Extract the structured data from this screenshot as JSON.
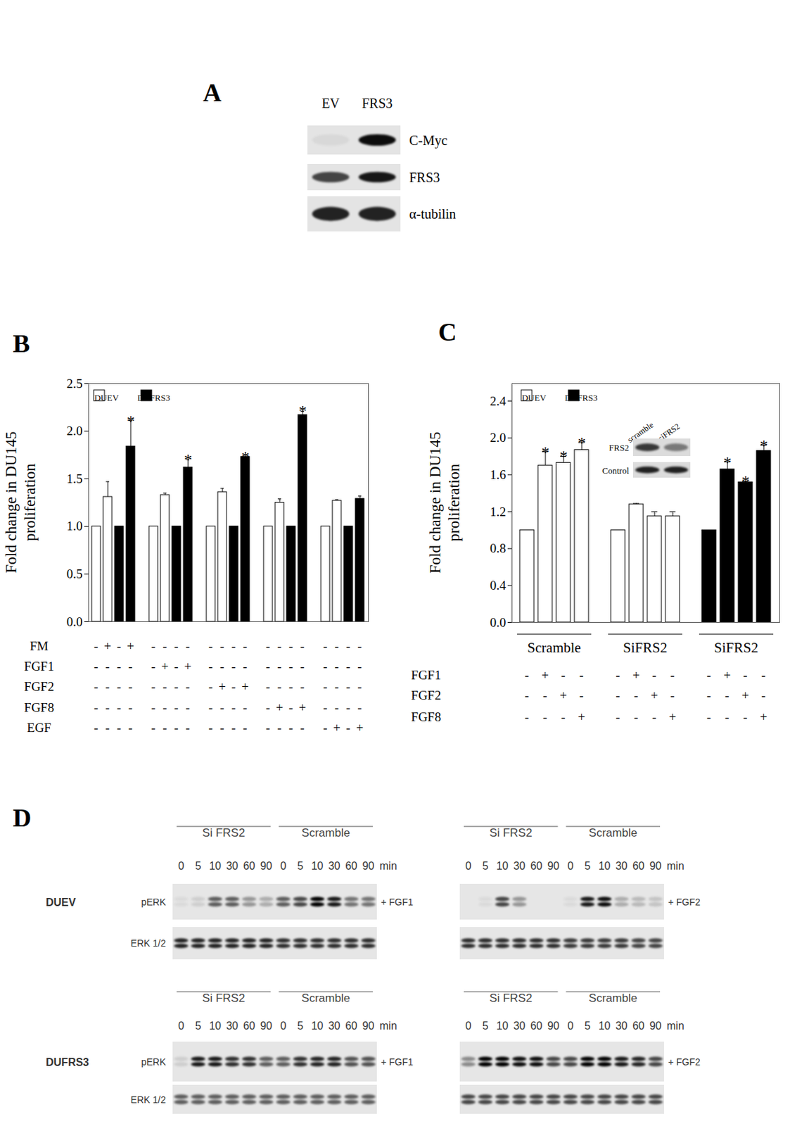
{
  "panel_labels": [
    "A",
    "B",
    "C",
    "D"
  ],
  "panel_a": {
    "lanes": [
      "EV",
      "FRS3"
    ],
    "rows": [
      {
        "label": "C-Myc",
        "bands": [
          0.05,
          0.95
        ]
      },
      {
        "label": "FRS3",
        "bands": [
          0.7,
          0.9
        ]
      },
      {
        "label": "α-tubilin",
        "bands": [
          0.85,
          0.85
        ]
      }
    ]
  },
  "chart_data": [
    {
      "type": "bar",
      "ylabel": [
        "Fold change in DU145",
        "proliferation"
      ],
      "ylim": [
        0,
        2.5
      ],
      "yticks": [
        {
          "value": 0,
          "label": "0.0"
        },
        {
          "value": 0.5,
          "label": "0.5"
        },
        {
          "value": 1,
          "label": "1.0"
        },
        {
          "value": 1.5,
          "label": "1.5"
        },
        {
          "value": 2,
          "label": "2.0"
        },
        {
          "value": 2.5,
          "label": "2.5"
        }
      ],
      "legend": "top-left",
      "series": [
        {
          "name": "DUEV",
          "color": "#ffffff",
          "group": [
            0,
            0,
            1,
            1,
            2,
            2,
            3,
            3,
            4,
            4
          ],
          "values": [
            1,
            1.31,
            1,
            1.33,
            1,
            1.36,
            1,
            1.25,
            1,
            1.27
          ],
          "errors": [
            null,
            0.16,
            null,
            0.02,
            null,
            0.04,
            null,
            0.04,
            null,
            0.01
          ]
        },
        {
          "name": "DUFRS3",
          "color": "#000000",
          "group": [
            0,
            0,
            1,
            1,
            2,
            2,
            3,
            3,
            4,
            4
          ],
          "values": [
            1,
            1.84,
            1,
            1.62,
            1,
            1.73,
            1,
            2.17,
            1,
            1.29
          ],
          "errors": [
            null,
            0.27,
            null,
            0.08,
            null,
            null,
            null,
            0.04,
            null,
            0.03
          ],
          "significance": [
            null,
            "*",
            null,
            "*",
            null,
            "*",
            null,
            "*",
            null,
            null
          ]
        }
      ],
      "conditions": [
        {
          "label": "FM",
          "signs": [
            "-",
            "+",
            "-",
            "+",
            "-",
            "-",
            "-",
            "-",
            "-",
            "-",
            "-",
            "-",
            "-",
            "-",
            "-",
            "-",
            "-",
            "-",
            "-",
            "-"
          ]
        },
        {
          "label": "FGF1",
          "signs": [
            "-",
            "-",
            "-",
            "-",
            "-",
            "+",
            "-",
            "+",
            "-",
            "-",
            "-",
            "-",
            "-",
            "-",
            "-",
            "-",
            "-",
            "-",
            "-",
            "-"
          ]
        },
        {
          "label": "FGF2",
          "signs": [
            "-",
            "-",
            "-",
            "-",
            "-",
            "-",
            "-",
            "-",
            "-",
            "+",
            "-",
            "+",
            "-",
            "-",
            "-",
            "-",
            "-",
            "-",
            "-",
            "-"
          ]
        },
        {
          "label": "FGF8",
          "signs": [
            "-",
            "-",
            "-",
            "-",
            "-",
            "-",
            "-",
            "-",
            "-",
            "-",
            "-",
            "-",
            "-",
            "+",
            "-",
            "+",
            "-",
            "-",
            "-",
            "-"
          ]
        },
        {
          "label": "EGF",
          "signs": [
            "-",
            "-",
            "-",
            "-",
            "-",
            "-",
            "-",
            "-",
            "-",
            "-",
            "-",
            "-",
            "-",
            "-",
            "-",
            "-",
            "-",
            "+",
            "-",
            "+"
          ]
        }
      ]
    },
    {
      "type": "bar",
      "ylabel": [
        "Fold change in DU145",
        "proliferation"
      ],
      "ylim": [
        0,
        2.59
      ],
      "yticks": [
        {
          "value": 0,
          "label": "0.0"
        },
        {
          "value": 0.4,
          "label": "0.4"
        },
        {
          "value": 0.8,
          "label": "0.8"
        },
        {
          "value": 1.2,
          "label": "1.2"
        },
        {
          "value": 1.6,
          "label": "1.6"
        },
        {
          "value": 2,
          "label": "2.0"
        },
        {
          "value": 2.4,
          "label": "2.4"
        }
      ],
      "legend": "top-left",
      "series": [
        {
          "name": "DUEV",
          "color": "#ffffff",
          "group": [
            0,
            0,
            0,
            0,
            1,
            1,
            1,
            1
          ],
          "values": [
            1,
            1.7,
            1.73,
            1.87,
            1,
            1.28,
            1.15,
            1.15
          ],
          "errors": [
            null,
            0.15,
            0.07,
            0.08,
            null,
            0.01,
            0.05,
            0.05
          ],
          "significance": [
            null,
            "*",
            "*",
            "*",
            null,
            null,
            null,
            null
          ]
        },
        {
          "name": "DUFRS3",
          "color": "#000000",
          "group": [
            2,
            2,
            2,
            2
          ],
          "values": [
            1,
            1.66,
            1.52,
            1.86
          ],
          "errors": [
            null,
            0.08,
            0.01,
            0.06
          ],
          "significance": [
            null,
            "*",
            "*",
            "*"
          ]
        }
      ],
      "group_labels": [
        "Scramble",
        "SiFRS2",
        "SiFRS2"
      ],
      "conditions": [
        {
          "label": "FGF1",
          "signs": [
            "-",
            "+",
            "-",
            "-",
            "-",
            "+",
            "-",
            "-",
            "-",
            "+",
            "-",
            "-"
          ]
        },
        {
          "label": "FGF2",
          "signs": [
            "-",
            "-",
            "+",
            "-",
            "-",
            "-",
            "+",
            "-",
            "-",
            "-",
            "+",
            "-"
          ]
        },
        {
          "label": "FGF8",
          "signs": [
            "-",
            "-",
            "-",
            "+",
            "-",
            "-",
            "-",
            "+",
            "-",
            "-",
            "-",
            "+"
          ]
        }
      ],
      "inset": {
        "lanes": [
          "scramble",
          "siFRS2"
        ],
        "rows": [
          {
            "label": "FRS2",
            "bands": [
              0.75,
              0.45
            ]
          },
          {
            "label": "Control",
            "bands": [
              0.85,
              0.85
            ]
          }
        ]
      }
    }
  ],
  "panel_d": {
    "rows": [
      {
        "label": "DUEV",
        "blots": [
          {
            "groups": [
              "Si FRS2",
              "Scramble"
            ],
            "times": [
              0,
              5,
              10,
              30,
              60,
              90
            ],
            "unit": "min",
            "treatment": "+ FGF1",
            "rows": [
              {
                "label": "pERK",
                "bands": [
                  0.05,
                  0.1,
                  0.6,
                  0.6,
                  0.35,
                  0.25,
                  0.6,
                  0.7,
                  1,
                  0.9,
                  0.5,
                  0.5
                ]
              },
              {
                "label": "ERK 1/2",
                "bands": [
                  0.85,
                  0.85,
                  0.85,
                  0.85,
                  0.85,
                  0.85,
                  0.8,
                  0.8,
                  0.8,
                  0.8,
                  0.8,
                  0.8
                ]
              }
            ]
          },
          {
            "groups": [
              "Si FRS2",
              "Scramble"
            ],
            "times": [
              0,
              5,
              10,
              30,
              60,
              90
            ],
            "unit": "min",
            "treatment": "+ FGF2",
            "rows": [
              {
                "label": null,
                "bands": [
                  0,
                  0.05,
                  0.7,
                  0.35,
                  0,
                  0,
                  0.05,
                  0.9,
                  0.95,
                  0.25,
                  0.2,
                  0.15
                ]
              },
              {
                "label": null,
                "bands": [
                  0.8,
                  0.8,
                  0.8,
                  0.8,
                  0.8,
                  0.8,
                  0.75,
                  0.75,
                  0.75,
                  0.75,
                  0.7,
                  0.7
                ]
              }
            ]
          }
        ]
      },
      {
        "label": "DUFRS3",
        "blots": [
          {
            "groups": [
              "Si FRS2",
              "Scramble"
            ],
            "times": [
              0,
              5,
              10,
              30,
              60,
              90
            ],
            "unit": "min",
            "treatment": "+ FGF1",
            "rows": [
              {
                "label": "pERK",
                "bands": [
                  0.1,
                  0.9,
                  0.9,
                  0.8,
                  0.8,
                  0.6,
                  0.6,
                  0.8,
                  0.85,
                  0.85,
                  0.65,
                  0.65
                ]
              },
              {
                "label": "ERK 1/2",
                "bands": [
                  0.6,
                  0.6,
                  0.6,
                  0.6,
                  0.6,
                  0.6,
                  0.6,
                  0.6,
                  0.6,
                  0.6,
                  0.6,
                  0.6
                ]
              }
            ]
          },
          {
            "groups": [
              "Si FRS2",
              "Scramble"
            ],
            "times": [
              0,
              5,
              10,
              30,
              60,
              90
            ],
            "unit": "min",
            "treatment": "+ FGF2",
            "rows": [
              {
                "label": null,
                "bands": [
                  0.4,
                  1,
                  1,
                  0.95,
                  0.95,
                  0.7,
                  0.7,
                  1,
                  1,
                  0.9,
                  0.85,
                  0.7
                ]
              },
              {
                "label": null,
                "bands": [
                  0.7,
                  0.7,
                  0.7,
                  0.7,
                  0.7,
                  0.7,
                  0.7,
                  0.7,
                  0.7,
                  0.7,
                  0.7,
                  0.7
                ]
              }
            ]
          }
        ]
      }
    ]
  }
}
